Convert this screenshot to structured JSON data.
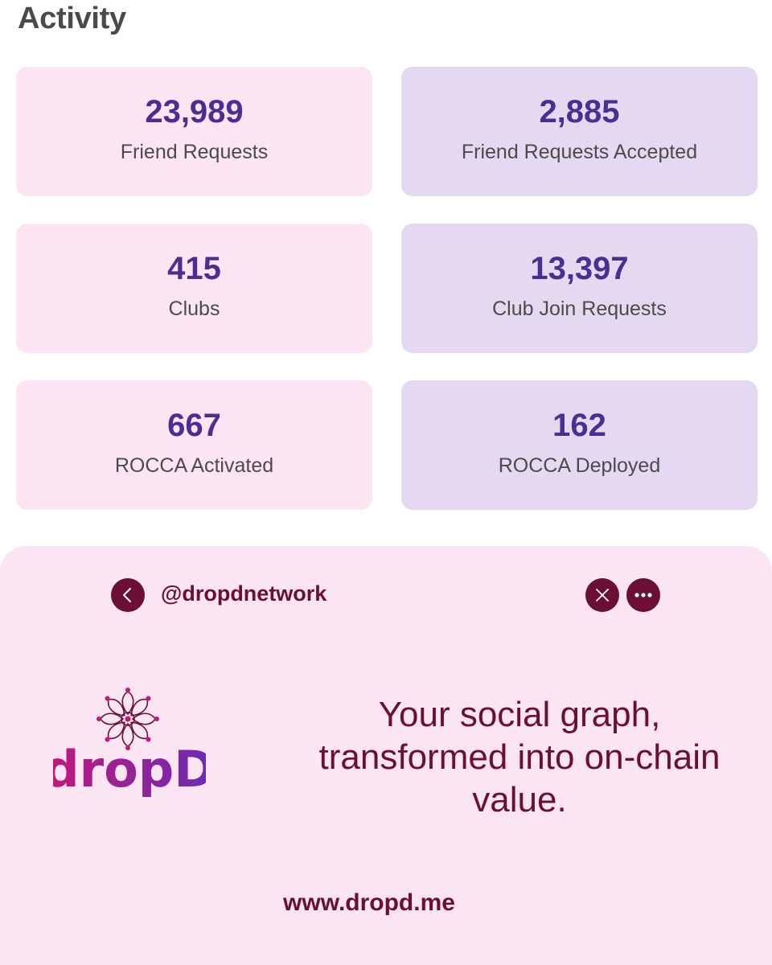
{
  "page": {
    "title": "Activity"
  },
  "stats": [
    {
      "value": "23,989",
      "label": "Friend Requests"
    },
    {
      "value": "2,885",
      "label": "Friend Requests Accepted"
    },
    {
      "value": "415",
      "label": "Clubs"
    },
    {
      "value": "13,397",
      "label": "Club Join Requests"
    },
    {
      "value": "667",
      "label": "ROCCA Activated"
    },
    {
      "value": "162",
      "label": "ROCCA Deployed"
    }
  ],
  "promo": {
    "handle": "@dropdnetwork",
    "brand": "dropD",
    "tagline": "Your social graph, transformed into on-chain value.",
    "url": "www.dropd.me"
  },
  "icons": {
    "back": "chevron-left-icon",
    "close": "close-icon",
    "more": "more-horizontal-icon",
    "logo": "lotus-logo-icon"
  },
  "colors": {
    "card_pink": "#fce5f2",
    "card_lavender": "#e4d9f1",
    "value_purple": "#4b2d94",
    "brand_maroon": "#6b0f33",
    "wordmark_gradient_start": "#c2187a",
    "wordmark_gradient_end": "#6a2bb5"
  }
}
